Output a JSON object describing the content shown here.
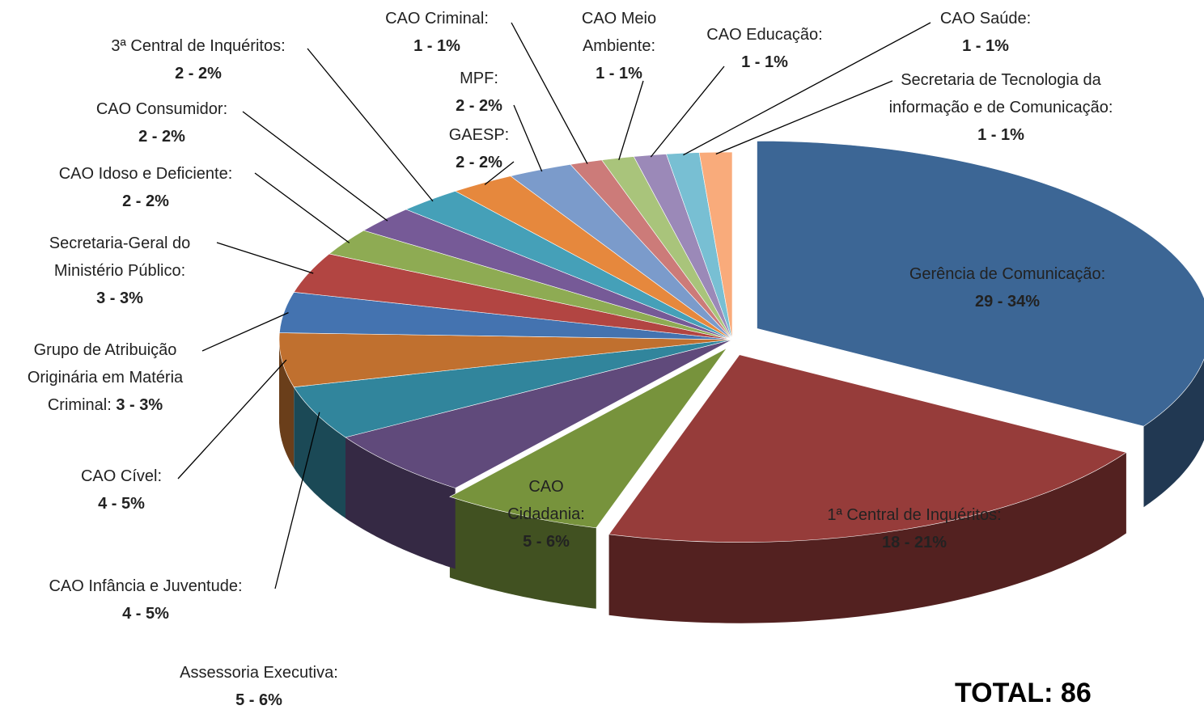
{
  "chart_data": {
    "type": "pie3d",
    "categories": [
      "Gerência de Comunicação:",
      "1ª Central de Inquéritos:",
      "CAO Cidadania:",
      "Assessoria Executiva:",
      "CAO Infância e Juventude:",
      "CAO Cível:",
      "Grupo de Atribuição Originária em Matéria Criminal:",
      "Secretaria-Geral do Ministério Público:",
      "CAO Idoso e Deficiente:",
      "CAO Consumidor:",
      "3ª Central de Inquéritos:",
      "GAESP:",
      "MPF:",
      "CAO Criminal:",
      "CAO Meio Ambiente:",
      "CAO Educação:",
      "CAO Saúde:",
      "Secretaria de Tecnologia da informação e de Comunicação:"
    ],
    "values": [
      29,
      18,
      5,
      5,
      4,
      4,
      3,
      3,
      2,
      2,
      2,
      2,
      2,
      1,
      1,
      1,
      1,
      1
    ],
    "value_labels": [
      "29 - 34%",
      "18 - 21%",
      "5 - 6%",
      "5 - 6%",
      "4 - 5%",
      "4 - 5%",
      "3 - 3%",
      "3 - 3%",
      "2 - 2%",
      "2 - 2%",
      "2 - 2%",
      "2 - 2%",
      "2 - 2%",
      "1 - 1%",
      "1 - 1%",
      "1 - 1%",
      "1 - 1%",
      "1 - 1%"
    ],
    "colors": [
      "#3c6695",
      "#963c3a",
      "#77933c",
      "#604a7b",
      "#31859c",
      "#c0702f",
      "#4473b0",
      "#b24542",
      "#8eab53",
      "#765a97",
      "#45a0b8",
      "#e6883d",
      "#7b9bcb",
      "#cc7b79",
      "#a9c47b",
      "#9b89b8",
      "#78bfd3",
      "#f9ab7b"
    ],
    "total": "TOTAL: 86"
  }
}
